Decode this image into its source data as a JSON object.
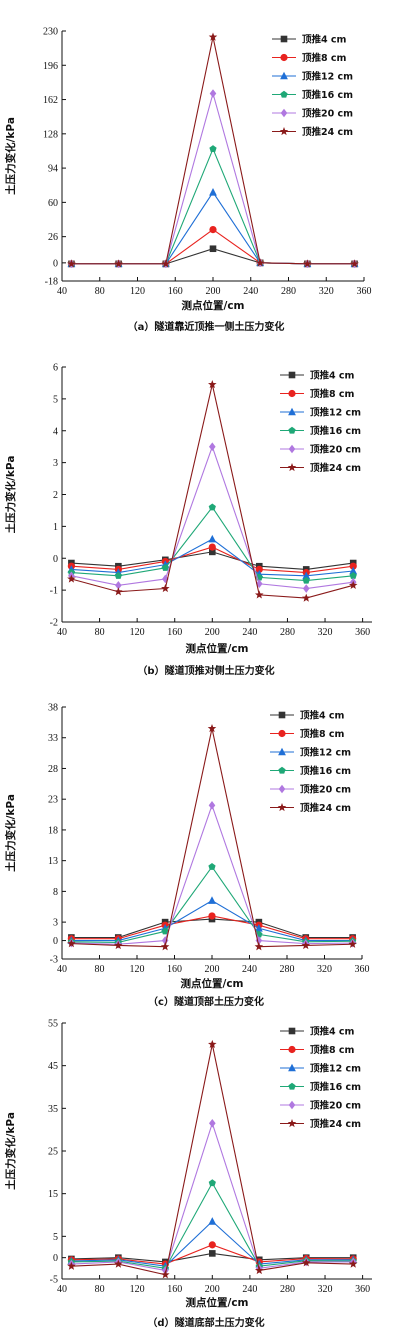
{
  "chart_data": [
    {
      "type": "line",
      "caption": "（a）隧道靠近顶推一侧土压力变化",
      "xlabel": "测点位置/cm",
      "ylabel": "土压力变化/kPa",
      "xlim": [
        40,
        360
      ],
      "ylim": [
        -18,
        230
      ],
      "xticks": [
        40,
        80,
        120,
        160,
        200,
        240,
        280,
        320,
        360
      ],
      "yticks": [
        -18,
        0,
        26,
        60,
        94,
        128,
        162,
        196,
        230
      ],
      "x": [
        50,
        100,
        150,
        200,
        250,
        300,
        350
      ],
      "legend": "top-right",
      "series": [
        {
          "name": "顶推4 cm",
          "color": "#333333",
          "marker": "square",
          "values": [
            -1,
            -1,
            -1,
            14,
            0,
            -1,
            -1
          ]
        },
        {
          "name": "顶推8 cm",
          "color": "#e8231f",
          "marker": "circle",
          "values": [
            -1,
            -1,
            -1,
            33,
            0,
            -1,
            -1
          ]
        },
        {
          "name": "顶推12 cm",
          "color": "#1f6fd6",
          "marker": "triangle",
          "values": [
            -1,
            -1,
            -1,
            70,
            0,
            -1,
            -1
          ]
        },
        {
          "name": "顶推16 cm",
          "color": "#1fa877",
          "marker": "pentagon",
          "values": [
            -1,
            -1,
            -1,
            113,
            0,
            -1,
            -1
          ]
        },
        {
          "name": "顶推20 cm",
          "color": "#b078e0",
          "marker": "diamond",
          "values": [
            -1,
            -1,
            -1,
            168,
            0,
            -1,
            -1
          ]
        },
        {
          "name": "顶推24 cm",
          "color": "#8a1a1a",
          "marker": "star",
          "values": [
            -1,
            -1,
            -1,
            224,
            0,
            -1,
            -1
          ]
        }
      ]
    },
    {
      "type": "line",
      "caption": "（b）隧道顶推对侧土压力变化",
      "xlabel": "测点位置/cm",
      "ylabel": "土压力变化/kPa",
      "xlim": [
        40,
        370
      ],
      "ylim": [
        -2,
        6
      ],
      "xticks": [
        40,
        80,
        120,
        160,
        200,
        240,
        280,
        320,
        360
      ],
      "yticks": [
        -2,
        -1,
        0,
        1,
        2,
        3,
        4,
        5,
        6
      ],
      "x": [
        50,
        100,
        150,
        200,
        250,
        300,
        350
      ],
      "legend": "top-right",
      "series": [
        {
          "name": "顶推4 cm",
          "color": "#333333",
          "marker": "square",
          "values": [
            -0.15,
            -0.25,
            -0.05,
            0.2,
            -0.25,
            -0.35,
            -0.15
          ]
        },
        {
          "name": "顶推8 cm",
          "color": "#e8231f",
          "marker": "circle",
          "values": [
            -0.25,
            -0.35,
            -0.1,
            0.35,
            -0.35,
            -0.45,
            -0.25
          ]
        },
        {
          "name": "顶推12 cm",
          "color": "#1f6fd6",
          "marker": "triangle",
          "values": [
            -0.35,
            -0.45,
            -0.2,
            0.6,
            -0.5,
            -0.55,
            -0.4
          ]
        },
        {
          "name": "顶推16 cm",
          "color": "#1fa877",
          "marker": "pentagon",
          "values": [
            -0.45,
            -0.55,
            -0.3,
            1.6,
            -0.6,
            -0.7,
            -0.55
          ]
        },
        {
          "name": "顶推20 cm",
          "color": "#b078e0",
          "marker": "diamond",
          "values": [
            -0.55,
            -0.85,
            -0.65,
            3.5,
            -0.8,
            -0.95,
            -0.75
          ]
        },
        {
          "name": "顶推24 cm",
          "color": "#8a1a1a",
          "marker": "star",
          "values": [
            -0.65,
            -1.05,
            -0.95,
            5.45,
            -1.15,
            -1.25,
            -0.85
          ]
        }
      ]
    },
    {
      "type": "line",
      "caption": "（c）隧道顶部土压力变化",
      "xlabel": "测点位置/cm",
      "ylabel": "土压力变化/kPa",
      "xlim": [
        40,
        360
      ],
      "ylim": [
        -3,
        38
      ],
      "xticks": [
        40,
        80,
        120,
        160,
        200,
        240,
        280,
        320,
        360
      ],
      "yticks": [
        -3,
        0,
        3,
        8,
        13,
        18,
        23,
        28,
        33,
        38
      ],
      "x": [
        50,
        100,
        150,
        200,
        250,
        300,
        350
      ],
      "legend": "top-right",
      "series": [
        {
          "name": "顶推4 cm",
          "color": "#333333",
          "marker": "square",
          "values": [
            0.5,
            0.5,
            3,
            3.5,
            3,
            0.5,
            0.5
          ]
        },
        {
          "name": "顶推8 cm",
          "color": "#e8231f",
          "marker": "circle",
          "values": [
            0.3,
            0.3,
            2.5,
            4,
            2.5,
            0.3,
            0.3
          ]
        },
        {
          "name": "顶推12 cm",
          "color": "#1f6fd6",
          "marker": "triangle",
          "values": [
            0,
            0,
            2,
            6.5,
            2,
            0,
            0
          ]
        },
        {
          "name": "顶推16 cm",
          "color": "#1fa877",
          "marker": "pentagon",
          "values": [
            -0.2,
            -0.3,
            1.5,
            12,
            1,
            -0.2,
            -0.1
          ]
        },
        {
          "name": "顶推20 cm",
          "color": "#b078e0",
          "marker": "diamond",
          "values": [
            -0.4,
            -0.6,
            0,
            22,
            0,
            -0.5,
            -0.4
          ]
        },
        {
          "name": "顶推24 cm",
          "color": "#8a1a1a",
          "marker": "star",
          "values": [
            -0.5,
            -0.8,
            -1,
            34.5,
            -1,
            -0.8,
            -0.6
          ]
        }
      ]
    },
    {
      "type": "line",
      "caption": "（d）隧道底部土压力变化",
      "xlabel": "测点位置/cm",
      "ylabel": "土压力变化/kPa",
      "xlim": [
        40,
        370
      ],
      "ylim": [
        -5,
        55
      ],
      "xticks": [
        40,
        80,
        120,
        160,
        200,
        240,
        280,
        320,
        360
      ],
      "yticks": [
        -5,
        0,
        5,
        15,
        25,
        35,
        45,
        55
      ],
      "x": [
        50,
        100,
        150,
        200,
        250,
        300,
        350
      ],
      "legend": "top-right",
      "series": [
        {
          "name": "顶推4 cm",
          "color": "#333333",
          "marker": "square",
          "values": [
            -0.3,
            0,
            -1,
            1,
            -0.5,
            0,
            0
          ]
        },
        {
          "name": "顶推8 cm",
          "color": "#e8231f",
          "marker": "circle",
          "values": [
            -0.5,
            -0.3,
            -1.5,
            3,
            -1,
            -0.2,
            -0.3
          ]
        },
        {
          "name": "顶推12 cm",
          "color": "#1f6fd6",
          "marker": "triangle",
          "values": [
            -0.8,
            -0.5,
            -2,
            8.5,
            -1.5,
            -0.5,
            -0.5
          ]
        },
        {
          "name": "顶推16 cm",
          "color": "#1fa877",
          "marker": "pentagon",
          "values": [
            -1,
            -0.8,
            -2.5,
            17.5,
            -2,
            -0.7,
            -0.8
          ]
        },
        {
          "name": "顶推20 cm",
          "color": "#b078e0",
          "marker": "diamond",
          "values": [
            -1.5,
            -1,
            -3,
            31.5,
            -2.5,
            -1,
            -1
          ]
        },
        {
          "name": "顶推24 cm",
          "color": "#8a1a1a",
          "marker": "star",
          "values": [
            -2,
            -1.5,
            -4,
            50,
            -3,
            -1.2,
            -1.5
          ]
        }
      ]
    }
  ]
}
